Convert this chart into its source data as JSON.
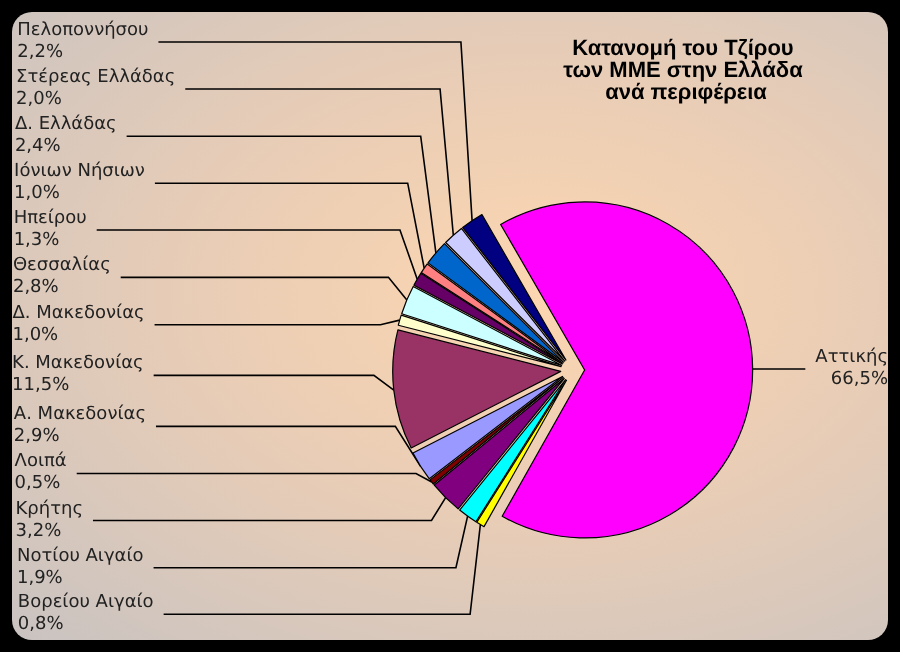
{
  "chart_data": {
    "type": "pie",
    "title": "Κατανομή του Τζίρου των ΜΜΕ στην Ελλάδα ανά περιφέρεια",
    "categories": [
      "Αττικής",
      "Βορείου Αιγαίο",
      "Νοτίου Αιγαίο",
      "Κρήτης",
      "Λοιπά",
      "Α. Μακεδονίας",
      "Κ. Μακεδονίας",
      "Δ. Μακεδονίας",
      "Θεσσαλίας",
      "Ηπείρου",
      "Ιόνιων Νήσιων",
      "Δ. Ελλάδας",
      "Στέρεας Ελλάδας",
      "Πελοποννήσου"
    ],
    "values": [
      66.5,
      0.8,
      1.9,
      3.2,
      0.5,
      2.9,
      11.5,
      1.0,
      2.8,
      1.3,
      1.0,
      2.4,
      2.0,
      2.2
    ],
    "value_labels": [
      "66,5%",
      "0,8%",
      "1,9%",
      "3,2%",
      "0,5%",
      "2,9%",
      "11,5%",
      "1,0%",
      "2,8%",
      "1,3%",
      "1,0%",
      "2,4%",
      "2,0%",
      "2,2%"
    ],
    "colors": [
      "#ff00ff",
      "#ffff00",
      "#00ffff",
      "#800080",
      "#800000",
      "#9999ff",
      "#993366",
      "#ffffcc",
      "#ccffff",
      "#660066",
      "#ff8080",
      "#0066cc",
      "#ccccff",
      "#000080"
    ],
    "legend": false
  }
}
